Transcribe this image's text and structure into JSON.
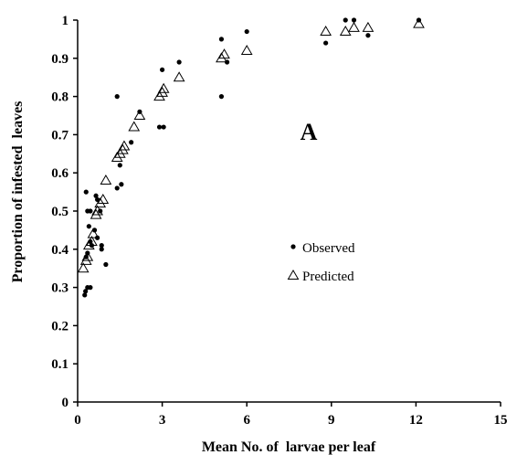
{
  "chart_data": {
    "type": "scatter",
    "title": "",
    "xlabel": "Mean No. of  larvae per leaf",
    "ylabel": "Proportion of infested  leaves",
    "xlim": [
      0,
      15
    ],
    "ylim": [
      0,
      1
    ],
    "x_ticks": [
      "0",
      "3",
      "6",
      "9",
      "12",
      "15"
    ],
    "y_ticks": [
      "0",
      "0.1",
      "0.2",
      "0.3",
      "0.4",
      "0.5",
      "0.6",
      "0.7",
      "0.8",
      "0.9",
      "1"
    ],
    "annotation": "A",
    "legend_position": "center-right",
    "grid": false,
    "series": [
      {
        "name": "Observed",
        "marker": "filled-circle",
        "color": "#000000",
        "points": [
          [
            0.25,
            0.28
          ],
          [
            0.28,
            0.29
          ],
          [
            0.35,
            0.3
          ],
          [
            0.45,
            0.3
          ],
          [
            0.3,
            0.55
          ],
          [
            0.35,
            0.5
          ],
          [
            0.45,
            0.5
          ],
          [
            0.3,
            0.38
          ],
          [
            0.35,
            0.39
          ],
          [
            0.45,
            0.42
          ],
          [
            0.5,
            0.41
          ],
          [
            0.4,
            0.46
          ],
          [
            0.6,
            0.45
          ],
          [
            0.7,
            0.43
          ],
          [
            0.65,
            0.54
          ],
          [
            0.7,
            0.53
          ],
          [
            0.8,
            0.5
          ],
          [
            0.85,
            0.41
          ],
          [
            0.85,
            0.4
          ],
          [
            1.0,
            0.36
          ],
          [
            1.4,
            0.8
          ],
          [
            1.4,
            0.56
          ],
          [
            1.5,
            0.62
          ],
          [
            1.55,
            0.57
          ],
          [
            1.9,
            0.68
          ],
          [
            2.2,
            0.76
          ],
          [
            2.9,
            0.72
          ],
          [
            3.0,
            0.87
          ],
          [
            3.05,
            0.72
          ],
          [
            3.6,
            0.89
          ],
          [
            5.1,
            0.95
          ],
          [
            5.1,
            0.8
          ],
          [
            5.3,
            0.89
          ],
          [
            6.0,
            0.97
          ],
          [
            8.8,
            0.94
          ],
          [
            9.5,
            1.0
          ],
          [
            9.8,
            1.0
          ],
          [
            10.3,
            0.96
          ],
          [
            12.1,
            1.0
          ]
        ]
      },
      {
        "name": "Predicted",
        "marker": "open-triangle",
        "color": "#000000",
        "points": [
          [
            0.2,
            0.35
          ],
          [
            0.3,
            0.37
          ],
          [
            0.35,
            0.38
          ],
          [
            0.4,
            0.41
          ],
          [
            0.5,
            0.42
          ],
          [
            0.55,
            0.44
          ],
          [
            0.65,
            0.49
          ],
          [
            0.7,
            0.5
          ],
          [
            0.8,
            0.52
          ],
          [
            0.9,
            0.53
          ],
          [
            1.0,
            0.58
          ],
          [
            1.4,
            0.64
          ],
          [
            1.5,
            0.65
          ],
          [
            1.6,
            0.66
          ],
          [
            1.65,
            0.67
          ],
          [
            2.0,
            0.72
          ],
          [
            2.2,
            0.75
          ],
          [
            2.9,
            0.8
          ],
          [
            3.0,
            0.81
          ],
          [
            3.05,
            0.82
          ],
          [
            3.6,
            0.85
          ],
          [
            5.1,
            0.9
          ],
          [
            5.2,
            0.91
          ],
          [
            6.0,
            0.92
          ],
          [
            8.8,
            0.97
          ],
          [
            9.5,
            0.97
          ],
          [
            9.8,
            0.98
          ],
          [
            10.3,
            0.98
          ],
          [
            12.1,
            0.99
          ]
        ]
      }
    ]
  }
}
